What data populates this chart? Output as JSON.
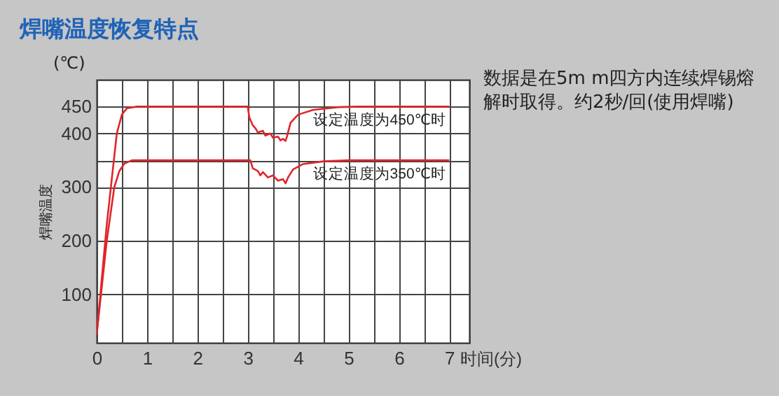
{
  "chart_data": {
    "type": "line",
    "title": "焊嘴温度恢复特点",
    "xlabel": "时间(分)",
    "ylabel": "焊嘴温度",
    "annotations": [
      "(℃)",
      "数据是在5m m四方内连续焊锡熔解时取得。约2秒/回(使用焊嘴)"
    ],
    "xlim": [
      0,
      7.4
    ],
    "ylim": [
      10,
      500
    ],
    "xticks": [
      0,
      {
        "value": 0.5,
        "label": null
      },
      1,
      {
        "value": 1.5,
        "label": null
      },
      2,
      {
        "value": 2.5,
        "label": null
      },
      3,
      {
        "value": 3.5,
        "label": null
      },
      4,
      {
        "value": 4.5,
        "label": null
      },
      5,
      {
        "value": 5.5,
        "label": null
      },
      6,
      {
        "value": 6.5,
        "label": null
      },
      7
    ],
    "yticks": [
      100,
      200,
      300,
      {
        "value": 350,
        "label": null
      },
      400,
      450
    ],
    "grid": true,
    "legend": false,
    "series": [
      {
        "name": "设定温度为450℃时",
        "color": "#e0252a",
        "x": [
          0,
          0.2,
          0.4,
          0.5,
          0.6,
          0.8,
          3.0,
          3.03,
          3.1,
          3.15,
          3.2,
          3.3,
          3.35,
          3.45,
          3.5,
          3.6,
          3.65,
          3.7,
          3.75,
          3.78,
          3.85,
          4.0,
          4.3,
          4.8,
          5.2,
          7.0
        ],
        "values": [
          25,
          230,
          400,
          435,
          447,
          450,
          450,
          430,
          415,
          410,
          402,
          405,
          396,
          400,
          392,
          394,
          387,
          390,
          386,
          395,
          420,
          435,
          444,
          449,
          450,
          450
        ]
      },
      {
        "name": "设定温度为350℃时",
        "color": "#e0252a",
        "x": [
          0,
          0.2,
          0.35,
          0.45,
          0.55,
          0.7,
          3.05,
          3.1,
          3.2,
          3.25,
          3.3,
          3.4,
          3.5,
          3.6,
          3.7,
          3.75,
          3.8,
          3.9,
          4.1,
          4.5,
          5.0,
          7.0
        ],
        "values": [
          25,
          200,
          300,
          330,
          344,
          350,
          350,
          335,
          330,
          322,
          328,
          318,
          322,
          312,
          315,
          307,
          318,
          333,
          343,
          348,
          350,
          350
        ]
      }
    ]
  }
}
